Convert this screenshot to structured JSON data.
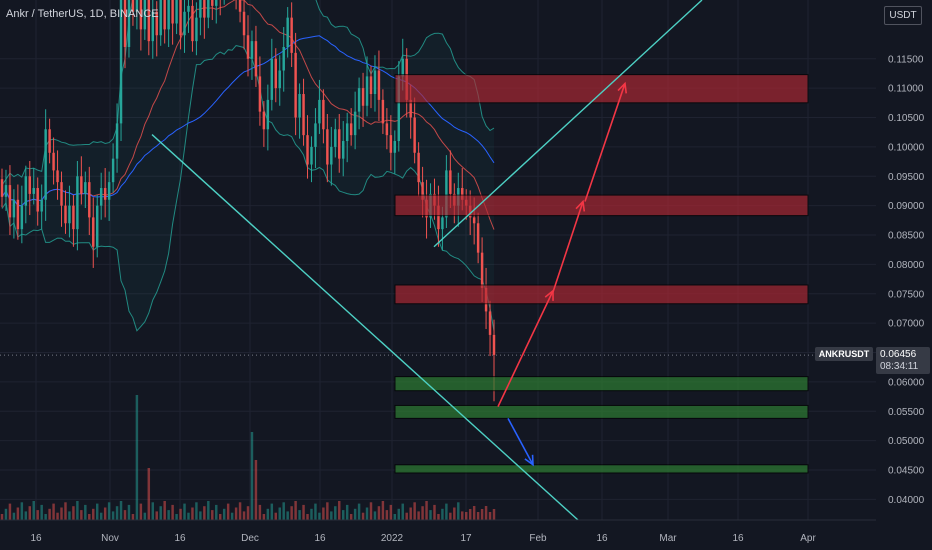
{
  "header": {
    "title": "Ankr / TetherUS, 1D, BINANCE",
    "currency": "USDT"
  },
  "price_badge": {
    "symbol": "ANKRUSDT",
    "price": "0.06456",
    "countdown": "08:34:11"
  },
  "colors": {
    "background": "#131722",
    "up_candle": "#26a69a",
    "down_candle": "#ef5350",
    "resistance_zone": "#b22833",
    "support_zone": "#2e7d32",
    "trendline": "#4dd0c4",
    "arrow_up": "#f23645",
    "arrow_down": "#2962ff",
    "bb_basis": "#2962ff",
    "bb_upper": "#ef5350",
    "bb_band": "#26a69a"
  },
  "chart_data": {
    "type": "candlestick",
    "y_axis": {
      "range": [
        0.0365,
        0.125
      ],
      "ticks": [
        "0.11500",
        "0.11000",
        "0.10500",
        "0.10000",
        "0.09500",
        "0.09000",
        "0.08500",
        "0.08000",
        "0.07500",
        "0.07000",
        "0.06500",
        "0.06000",
        "0.05500",
        "0.05000",
        "0.04500",
        "0.04000"
      ]
    },
    "x_axis": {
      "ticks": [
        "16",
        "Nov",
        "16",
        "Dec",
        "16",
        "2022",
        "17",
        "Feb",
        "16",
        "Mar",
        "16",
        "Apr"
      ]
    },
    "current_price": 0.06456,
    "resistance_zones": [
      [
        0.1075,
        0.1123
      ],
      [
        0.0883,
        0.0918
      ],
      [
        0.0733,
        0.0765
      ]
    ],
    "support_zones": [
      [
        0.0585,
        0.0609
      ],
      [
        0.0538,
        0.056
      ],
      [
        0.0445,
        0.0459
      ]
    ],
    "projected_path": [
      [
        0.0558,
        0.0755
      ],
      [
        0.0753,
        0.0907
      ],
      [
        0.0907,
        0.1108
      ]
    ],
    "projected_down": [
      0.0538,
      0.0459
    ],
    "candles": [
      [
        0.0945,
        0.0915
      ],
      [
        0.0915,
        0.0935
      ],
      [
        0.0935,
        0.088
      ],
      [
        0.088,
        0.091
      ],
      [
        0.091,
        0.086
      ],
      [
        0.086,
        0.09
      ],
      [
        0.09,
        0.095
      ],
      [
        0.095,
        0.092
      ],
      [
        0.092,
        0.093
      ],
      [
        0.093,
        0.089
      ],
      [
        0.089,
        0.091
      ],
      [
        0.091,
        0.103
      ],
      [
        0.103,
        0.099
      ],
      [
        0.099,
        0.096
      ],
      [
        0.096,
        0.094
      ],
      [
        0.094,
        0.09
      ],
      [
        0.09,
        0.087
      ],
      [
        0.087,
        0.09
      ],
      [
        0.09,
        0.086
      ],
      [
        0.086,
        0.095
      ],
      [
        0.095,
        0.092
      ],
      [
        0.092,
        0.094
      ],
      [
        0.094,
        0.088
      ],
      [
        0.088,
        0.083
      ],
      [
        0.083,
        0.09
      ],
      [
        0.09,
        0.093
      ],
      [
        0.093,
        0.091
      ],
      [
        0.091,
        0.094
      ],
      [
        0.094,
        0.098
      ],
      [
        0.098,
        0.104
      ],
      [
        0.104,
        0.125
      ],
      [
        0.125,
        0.117
      ],
      [
        0.117,
        0.13
      ],
      [
        0.13,
        0.123
      ],
      [
        0.123,
        0.135
      ],
      [
        0.135,
        0.12
      ],
      [
        0.12,
        0.129
      ],
      [
        0.129,
        0.118
      ],
      [
        0.118,
        0.123
      ],
      [
        0.123,
        0.119
      ],
      [
        0.119,
        0.125
      ],
      [
        0.125,
        0.12
      ],
      [
        0.12,
        0.13
      ],
      [
        0.13,
        0.121
      ],
      [
        0.121,
        0.127
      ],
      [
        0.127,
        0.119
      ],
      [
        0.119,
        0.123
      ],
      [
        0.123,
        0.124
      ],
      [
        0.124,
        0.118
      ],
      [
        0.118,
        0.122
      ],
      [
        0.122,
        0.126
      ],
      [
        0.126,
        0.122
      ],
      [
        0.122,
        0.128
      ],
      [
        0.128,
        0.124
      ],
      [
        0.124,
        0.13
      ],
      [
        0.13,
        0.126
      ],
      [
        0.126,
        0.132
      ],
      [
        0.132,
        0.128
      ],
      [
        0.128,
        0.131
      ],
      [
        0.131,
        0.127
      ],
      [
        0.127,
        0.123
      ],
      [
        0.123,
        0.119
      ],
      [
        0.119,
        0.115
      ],
      [
        0.115,
        0.118
      ],
      [
        0.118,
        0.112
      ],
      [
        0.112,
        0.106
      ],
      [
        0.106,
        0.103
      ],
      [
        0.103,
        0.108
      ],
      [
        0.108,
        0.115
      ],
      [
        0.115,
        0.11
      ],
      [
        0.11,
        0.113
      ],
      [
        0.113,
        0.117
      ],
      [
        0.117,
        0.122
      ],
      [
        0.122,
        0.116
      ],
      [
        0.116,
        0.105
      ],
      [
        0.105,
        0.109
      ],
      [
        0.109,
        0.102
      ],
      [
        0.102,
        0.097
      ],
      [
        0.097,
        0.1
      ],
      [
        0.1,
        0.104
      ],
      [
        0.104,
        0.108
      ],
      [
        0.108,
        0.103
      ],
      [
        0.103,
        0.097
      ],
      [
        0.097,
        0.1
      ],
      [
        0.1,
        0.103
      ],
      [
        0.103,
        0.098
      ],
      [
        0.098,
        0.101
      ],
      [
        0.101,
        0.104
      ],
      [
        0.104,
        0.102
      ],
      [
        0.102,
        0.106
      ],
      [
        0.106,
        0.11
      ],
      [
        0.11,
        0.107
      ],
      [
        0.107,
        0.112
      ],
      [
        0.112,
        0.109
      ],
      [
        0.109,
        0.113
      ],
      [
        0.113,
        0.108
      ],
      [
        0.108,
        0.104
      ],
      [
        0.104,
        0.102
      ],
      [
        0.102,
        0.099
      ],
      [
        0.099,
        0.101
      ],
      [
        0.101,
        0.112
      ],
      [
        0.112,
        0.115
      ],
      [
        0.115,
        0.108
      ],
      [
        0.108,
        0.105
      ],
      [
        0.105,
        0.099
      ],
      [
        0.099,
        0.094
      ],
      [
        0.094,
        0.091
      ],
      [
        0.091,
        0.088
      ],
      [
        0.088,
        0.092
      ],
      [
        0.092,
        0.09
      ],
      [
        0.09,
        0.086
      ],
      [
        0.086,
        0.088
      ],
      [
        0.088,
        0.096
      ],
      [
        0.096,
        0.092
      ],
      [
        0.092,
        0.09
      ],
      [
        0.09,
        0.093
      ],
      [
        0.093,
        0.091
      ],
      [
        0.091,
        0.09
      ],
      [
        0.09,
        0.088
      ],
      [
        0.088,
        0.087
      ],
      [
        0.087,
        0.082
      ],
      [
        0.082,
        0.076
      ],
      [
        0.076,
        0.072
      ],
      [
        0.072,
        0.068
      ],
      [
        0.068,
        0.0646
      ]
    ]
  }
}
